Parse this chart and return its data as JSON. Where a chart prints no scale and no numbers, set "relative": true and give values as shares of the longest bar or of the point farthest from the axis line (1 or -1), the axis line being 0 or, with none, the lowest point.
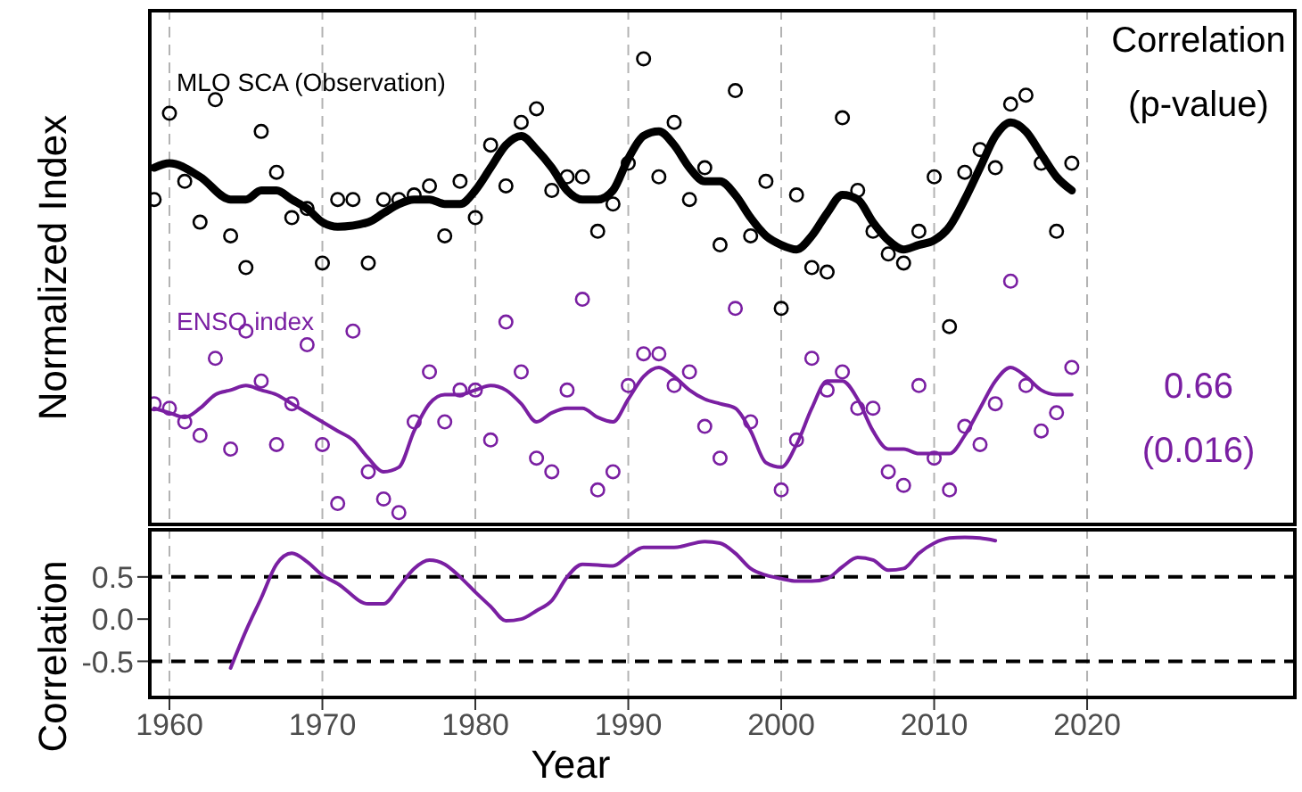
{
  "chart_data": [
    {
      "type": "scatter",
      "relative": true,
      "ylabel": "Normalized Index",
      "xlim": [
        1958.6,
        2033.7
      ],
      "xticks": [
        1960,
        1970,
        1980,
        1990,
        2000,
        2010,
        2020
      ],
      "tick_labels": false,
      "grid": "x",
      "annotations": [
        "Correlation",
        "(p-value)",
        "0.66",
        "(0.016)"
      ],
      "series": [
        {
          "name": "MLO SCA (Observation)",
          "marker": "circle",
          "color": "#000000",
          "x": [
            1959,
            1960,
            1961,
            1962,
            1963,
            1964,
            1965,
            1966,
            1967,
            1968,
            1969,
            1970,
            1971,
            1972,
            1973,
            1974,
            1975,
            1976,
            1977,
            1978,
            1979,
            1980,
            1981,
            1982,
            1983,
            1984,
            1985,
            1986,
            1987,
            1988,
            1989,
            1990,
            1991,
            1992,
            1993,
            1994,
            1995,
            1996,
            1997,
            1998,
            1999,
            2000,
            2001,
            2002,
            2003,
            2004,
            2005,
            2006,
            2007,
            2008,
            2009,
            2010,
            2011,
            2012,
            2013,
            2014,
            2015,
            2016,
            2017,
            2018,
            2019
          ],
          "values": [
            0.69,
            0.88,
            0.73,
            0.64,
            0.91,
            0.61,
            0.54,
            0.84,
            0.75,
            0.65,
            0.67,
            0.55,
            0.69,
            0.69,
            0.55,
            0.69,
            0.69,
            0.7,
            0.72,
            0.61,
            0.73,
            0.65,
            0.81,
            0.72,
            0.86,
            0.89,
            0.71,
            0.74,
            0.74,
            0.62,
            0.68,
            0.77,
            1.0,
            0.74,
            0.86,
            0.69,
            0.76,
            0.59,
            0.93,
            0.61,
            0.73,
            0.45,
            0.7,
            0.54,
            0.53,
            0.87,
            0.71,
            0.62,
            0.57,
            0.55,
            0.62,
            0.74,
            0.41,
            0.75,
            0.8,
            0.76,
            0.9,
            0.92,
            0.77,
            0.62,
            0.77
          ]
        },
        {
          "type": "line",
          "color": "#000000",
          "x": [
            1959,
            1960,
            1962,
            1964,
            1965,
            1966,
            1967,
            1968,
            1969,
            1970,
            1971,
            1973,
            1974,
            1975,
            1976,
            1977,
            1978,
            1979,
            1980,
            1981,
            1982,
            1983,
            1984,
            1985,
            1986,
            1987,
            1988,
            1989,
            1990,
            1991,
            1992,
            1993,
            1994,
            1995,
            1996,
            1997,
            1998,
            1999,
            2000,
            2001,
            2002,
            2003,
            2004,
            2005,
            2006,
            2007,
            2008,
            2009,
            2010,
            2011,
            2012,
            2013,
            2014,
            2015,
            2016,
            2017,
            2018,
            2019
          ],
          "values": [
            0.76,
            0.77,
            0.74,
            0.69,
            0.69,
            0.71,
            0.71,
            0.69,
            0.67,
            0.64,
            0.63,
            0.64,
            0.66,
            0.68,
            0.69,
            0.69,
            0.68,
            0.68,
            0.71,
            0.76,
            0.81,
            0.83,
            0.8,
            0.76,
            0.71,
            0.69,
            0.69,
            0.71,
            0.78,
            0.83,
            0.84,
            0.81,
            0.76,
            0.73,
            0.73,
            0.7,
            0.65,
            0.61,
            0.59,
            0.58,
            0.61,
            0.66,
            0.7,
            0.69,
            0.64,
            0.6,
            0.58,
            0.59,
            0.6,
            0.63,
            0.69,
            0.76,
            0.83,
            0.86,
            0.84,
            0.79,
            0.74,
            0.71
          ]
        },
        {
          "name": "ENSO index",
          "marker": "circle",
          "color": "#7a1fa2",
          "x": [
            1959,
            1960,
            1961,
            1962,
            1963,
            1964,
            1965,
            1966,
            1967,
            1968,
            1969,
            1970,
            1971,
            1972,
            1973,
            1974,
            1975,
            1976,
            1977,
            1978,
            1979,
            1980,
            1981,
            1982,
            1983,
            1984,
            1985,
            1986,
            1987,
            1988,
            1989,
            1990,
            1991,
            1992,
            1993,
            1994,
            1995,
            1996,
            1997,
            1998,
            1999,
            2000,
            2001,
            2002,
            2003,
            2004,
            2005,
            2006,
            2007,
            2008,
            2009,
            2010,
            2011,
            2012,
            2013,
            2014,
            2015,
            2016,
            2017,
            2018,
            2019
          ],
          "values": [
            0.24,
            0.23,
            0.2,
            0.17,
            0.34,
            0.14,
            0.4,
            0.29,
            0.15,
            0.24,
            0.37,
            0.15,
            0.02,
            0.4,
            0.09,
            0.03,
            0.0,
            0.2,
            0.31,
            0.2,
            0.27,
            0.27,
            0.16,
            0.42,
            0.31,
            0.12,
            0.09,
            0.27,
            0.47,
            0.05,
            0.09,
            0.28,
            0.35,
            0.35,
            0.28,
            0.31,
            0.19,
            0.12,
            0.45,
            0.2,
            null,
            0.05,
            0.16,
            0.34,
            0.27,
            0.31,
            0.23,
            0.23,
            0.09,
            0.06,
            0.28,
            0.12,
            0.05,
            0.19,
            0.15,
            0.24,
            0.51,
            0.28,
            0.18,
            0.22,
            0.32
          ]
        },
        {
          "type": "line",
          "color": "#7a1fa2",
          "x": [
            1959,
            1960,
            1961,
            1962,
            1963,
            1964,
            1965,
            1966,
            1967,
            1968,
            1969,
            1970,
            1971,
            1972,
            1973,
            1974,
            1975,
            1976,
            1977,
            1978,
            1979,
            1980,
            1981,
            1982,
            1983,
            1984,
            1985,
            1986,
            1987,
            1988,
            1989,
            1990,
            1991,
            1992,
            1993,
            1994,
            1995,
            1996,
            1997,
            1998,
            1999,
            2000,
            2001,
            2002,
            2003,
            2004,
            2005,
            2006,
            2007,
            2008,
            2009,
            2010,
            2011,
            2012,
            2013,
            2014,
            2015,
            2016,
            2017,
            2018,
            2019
          ],
          "values": [
            0.23,
            0.22,
            0.21,
            0.23,
            0.26,
            0.27,
            0.28,
            0.27,
            0.26,
            0.24,
            0.22,
            0.2,
            0.18,
            0.16,
            0.12,
            0.09,
            0.1,
            0.18,
            0.24,
            0.26,
            0.26,
            0.27,
            0.28,
            0.27,
            0.24,
            0.2,
            0.22,
            0.23,
            0.23,
            0.21,
            0.2,
            0.25,
            0.3,
            0.32,
            0.3,
            0.27,
            0.25,
            0.24,
            0.23,
            0.18,
            0.11,
            0.1,
            0.15,
            0.23,
            0.29,
            0.29,
            0.25,
            0.18,
            0.14,
            0.14,
            0.13,
            0.13,
            0.13,
            0.17,
            0.23,
            0.29,
            0.32,
            0.3,
            0.27,
            0.26,
            0.26
          ]
        }
      ]
    },
    {
      "type": "line",
      "xlabel": "Year",
      "ylabel": "Correlation",
      "xlim": [
        1958.6,
        2033.7
      ],
      "xticks": [
        1960,
        1970,
        1980,
        1990,
        2000,
        2010,
        2020
      ],
      "ylim": [
        -0.95,
        1.08
      ],
      "yticks": [
        -0.5,
        {
          "value": 0,
          "label": "0.0"
        },
        0.5
      ],
      "grid": "x",
      "ref_lines": [
        {
          "axis": "y",
          "value": 0.5,
          "color": "#000000",
          "line_style": "dashed"
        },
        {
          "axis": "y",
          "value": -0.5,
          "color": "#000000",
          "line_style": "dashed"
        }
      ],
      "series": [
        {
          "color": "#7a1fa2",
          "x": [
            1964,
            1965,
            1966,
            1967,
            1968,
            1969,
            1970,
            1971,
            1973,
            1974,
            1975,
            1976,
            1977,
            1978,
            1979,
            1980,
            1981,
            1982,
            1983,
            1984,
            1985,
            1986,
            1987,
            1989,
            1990,
            1991,
            1993,
            1995,
            1996,
            1997,
            1998,
            1999,
            2000,
            2001,
            2002,
            2003,
            2004,
            2005,
            2006,
            2007,
            2008,
            2009,
            2010,
            2011,
            2012,
            2013,
            2014
          ],
          "values": [
            -0.58,
            -0.14,
            0.25,
            0.65,
            0.78,
            0.68,
            0.52,
            0.42,
            0.18,
            0.18,
            0.38,
            0.6,
            0.7,
            0.65,
            0.5,
            0.32,
            0.15,
            -0.02,
            0.0,
            0.1,
            0.22,
            0.5,
            0.65,
            0.63,
            0.75,
            0.85,
            0.85,
            0.92,
            0.9,
            0.78,
            0.6,
            0.52,
            0.48,
            0.45,
            0.45,
            0.48,
            0.62,
            0.73,
            0.7,
            0.58,
            0.6,
            0.78,
            0.9,
            0.96,
            0.97,
            0.96,
            0.93
          ]
        }
      ]
    }
  ]
}
